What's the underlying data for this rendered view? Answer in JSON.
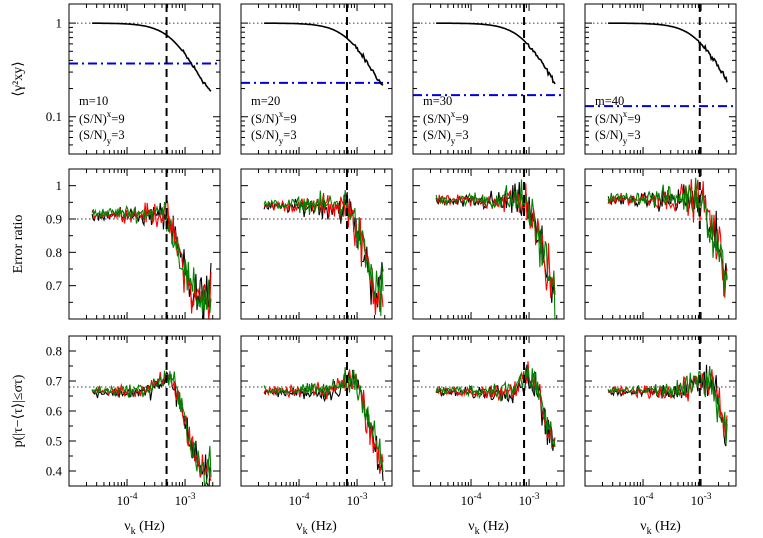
{
  "chart_data": {
    "type": "line",
    "title": "",
    "grid": false,
    "x_axis": {
      "label": "ν",
      "label_subscript": "k",
      "label_unit": " (Hz)",
      "scale": "log",
      "range": [
        1e-05,
        0.004
      ],
      "tick_labels": [
        {
          "value": 0.0001,
          "base": "10",
          "exp": "-4"
        },
        {
          "value": 0.001,
          "base": "10",
          "exp": "-3"
        }
      ]
    },
    "rows": [
      {
        "name": "coherence",
        "y_label": "⟨γ²xy⟩",
        "y_scale": "log",
        "y_range": [
          0.04,
          1.6
        ],
        "y_ticks": [
          {
            "value": 1,
            "label": "1"
          },
          {
            "value": 0.1,
            "label": "0.1"
          }
        ],
        "reference_line": 1
      },
      {
        "name": "error-ratio",
        "y_label": "Error ratio",
        "y_scale": "linear",
        "y_range": [
          0.6,
          1.05
        ],
        "y_ticks": [
          {
            "value": 0.7,
            "label": "0.7"
          },
          {
            "value": 0.8,
            "label": "0.8"
          },
          {
            "value": 0.9,
            "label": "0.9"
          },
          {
            "value": 1.0,
            "label": "1"
          }
        ],
        "reference_line": 0.9
      },
      {
        "name": "probability",
        "y_label": "p(|τ−⟨τ⟩|≤στ)",
        "y_scale": "linear",
        "y_range": [
          0.35,
          0.85
        ],
        "y_ticks": [
          {
            "value": 0.4,
            "label": "0.4"
          },
          {
            "value": 0.5,
            "label": "0.5"
          },
          {
            "value": 0.6,
            "label": "0.6"
          },
          {
            "value": 0.7,
            "label": "0.7"
          },
          {
            "value": 0.8,
            "label": "0.8"
          }
        ],
        "reference_line": 0.68
      }
    ],
    "columns": [
      {
        "m_label": "m=10",
        "snx_label": "(S/N)",
        "snx_sub": "x",
        "snx_val": "=9",
        "sny_label": "(S/N)",
        "sny_sub": "y",
        "sny_val": "=3",
        "threshold": 0.37,
        "nu_cut": 0.00048
      },
      {
        "m_label": "m=20",
        "snx_label": "(S/N)",
        "snx_sub": "x",
        "snx_val": "=9",
        "sny_label": "(S/N)",
        "sny_sub": "y",
        "sny_val": "=3",
        "threshold": 0.23,
        "nu_cut": 0.00067
      },
      {
        "m_label": "m=30",
        "snx_label": "(S/N)",
        "snx_sub": "x",
        "snx_val": "=9",
        "sny_label": "(S/N)",
        "sny_sub": "y",
        "sny_val": "=3",
        "threshold": 0.17,
        "nu_cut": 0.00082
      },
      {
        "m_label": "m=40",
        "snx_label": "(S/N)",
        "snx_sub": "x",
        "snx_val": "=9",
        "sny_label": "(S/N)",
        "sny_sub": "y",
        "sny_val": "=3",
        "threshold": 0.13,
        "nu_cut": 0.00095
      }
    ],
    "series": [
      {
        "name": "coherence",
        "row": "coherence",
        "color": "#000000",
        "x_start": 2.5e-05,
        "x_end": 0.0028
      },
      {
        "name": "simulation-black",
        "color": "#000000",
        "x_start": 2.5e-05,
        "x_end": 0.0028
      },
      {
        "name": "simulation-red",
        "color": "#ff0000",
        "x_start": 2.5e-05,
        "x_end": 0.0028
      },
      {
        "name": "simulation-green",
        "color": "#008000",
        "x_start": 2.5e-05,
        "x_end": 0.0028
      }
    ],
    "threshold_color": "#0000e0"
  }
}
